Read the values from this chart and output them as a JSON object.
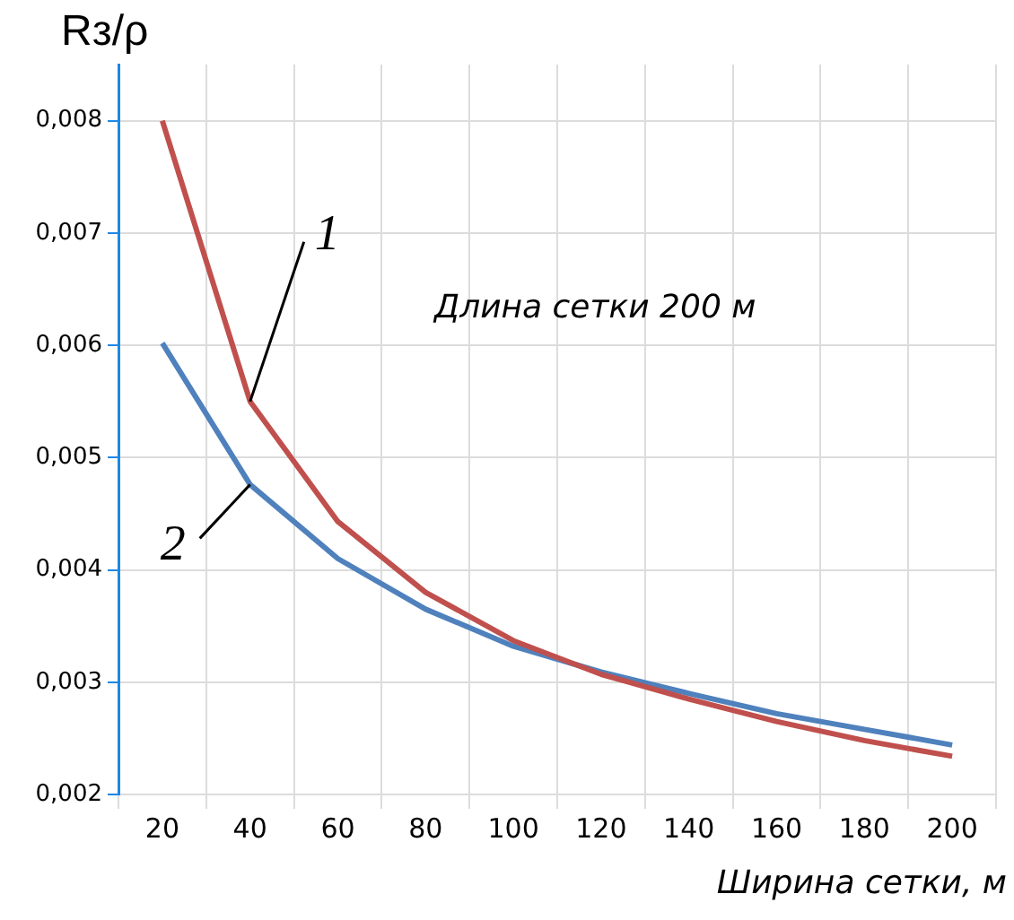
{
  "chart_data": {
    "type": "line",
    "ylabel": "Rз/ρ",
    "xlabel": "Ширина сетки, м",
    "annotations": [
      "Длина сетки 200 м",
      {
        "text": "1",
        "x": "40",
        "y": 0.0055
      },
      {
        "text": "2",
        "x": "40",
        "y": 0.00476
      }
    ],
    "categories": [
      "20",
      "40",
      "60",
      "80",
      "100",
      "120",
      "140",
      "160",
      "180",
      "200"
    ],
    "series": [
      {
        "color": "#c0504d",
        "values": [
          0.008,
          0.0055,
          0.00443,
          0.0038,
          0.00337,
          0.00307,
          0.00285,
          0.00265,
          0.00248,
          0.00234
        ]
      },
      {
        "color": "#4f81bd",
        "values": [
          0.00602,
          0.00476,
          0.0041,
          0.00365,
          0.00332,
          0.00309,
          0.0029,
          0.00272,
          0.00258,
          0.00244
        ]
      }
    ],
    "ylim": [
      0.002,
      0.0085
    ],
    "yticks": [
      {
        "value": 0.002,
        "label": "0,002"
      },
      {
        "value": 0.003,
        "label": "0,003"
      },
      {
        "value": 0.004,
        "label": "0,004"
      },
      {
        "value": 0.005,
        "label": "0,005"
      },
      {
        "value": 0.006,
        "label": "0,006"
      },
      {
        "value": 0.007,
        "label": "0,007"
      },
      {
        "value": 0.008,
        "label": "0,008"
      }
    ],
    "grid": true,
    "legend": false,
    "marker": "none",
    "line_style": "solid"
  }
}
